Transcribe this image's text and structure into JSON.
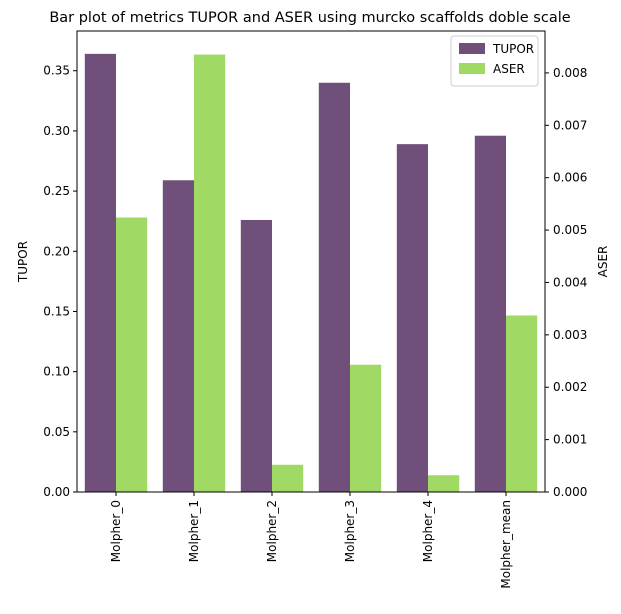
{
  "chart_data": {
    "type": "bar",
    "title": "Bar plot of metrics TUPOR and ASER using murcko scaffolds doble scale",
    "categories": [
      "Molpher_0",
      "Molpher_1",
      "Molpher_2",
      "Molpher_3",
      "Molpher_4",
      "Molpher_mean"
    ],
    "series": [
      {
        "name": "TUPOR",
        "axis": "left",
        "color": "#714f7b",
        "values": [
          0.364,
          0.259,
          0.226,
          0.34,
          0.289,
          0.296
        ]
      },
      {
        "name": "ASER",
        "axis": "right",
        "color": "#a0d964",
        "values": [
          0.00524,
          0.00835,
          0.00052,
          0.00243,
          0.00032,
          0.00337
        ]
      }
    ],
    "ylabel": "TUPOR",
    "ylabel_right": "ASER",
    "ylim": [
      0,
      0.383
    ],
    "ylim_right": [
      0,
      0.0088
    ],
    "yticks": [
      "0.00",
      "0.05",
      "0.10",
      "0.15",
      "0.20",
      "0.25",
      "0.30",
      "0.35"
    ],
    "yticks_right": [
      "0.000",
      "0.001",
      "0.002",
      "0.003",
      "0.004",
      "0.005",
      "0.006",
      "0.007",
      "0.008"
    ],
    "legend": "top-right",
    "grid": false
  }
}
